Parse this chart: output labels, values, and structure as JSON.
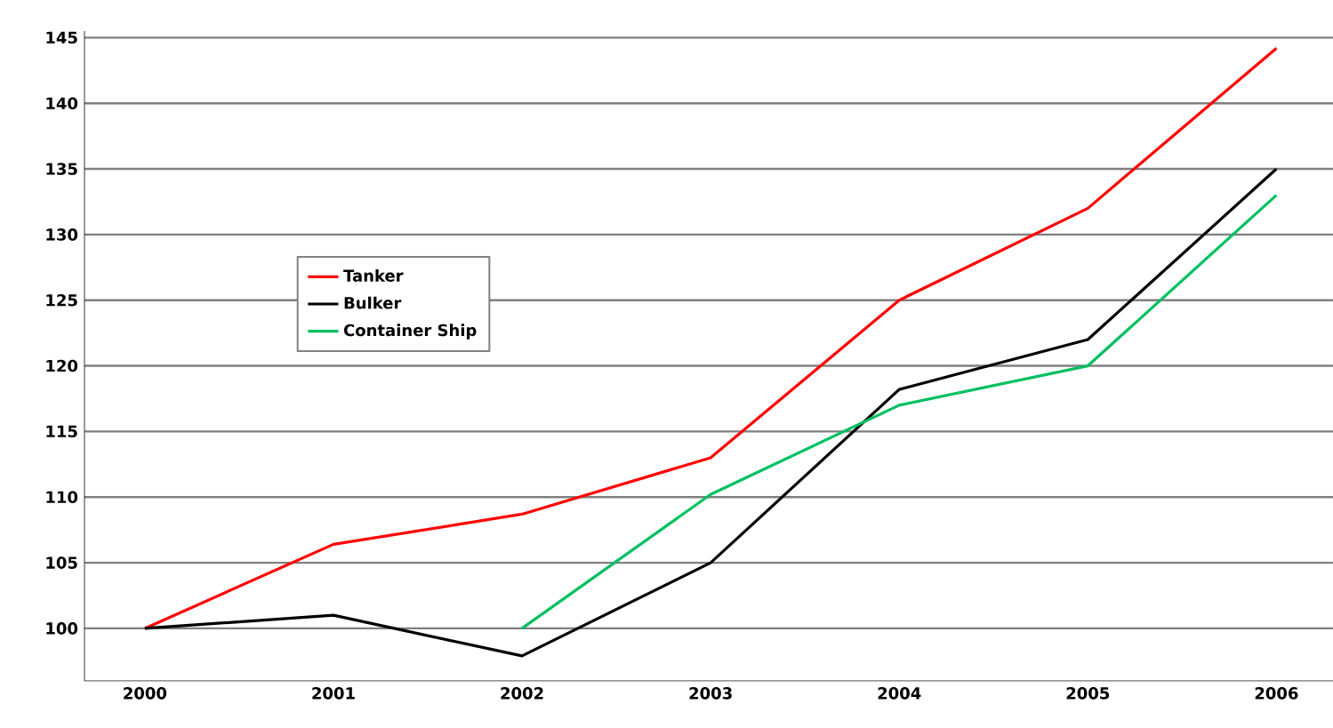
{
  "chart_data": {
    "type": "line",
    "categories": [
      "2000",
      "2001",
      "2002",
      "2003",
      "2004",
      "2005",
      "2006"
    ],
    "series": [
      {
        "name": "Tanker",
        "color": "#ff0000",
        "values": [
          100,
          106.4,
          108.7,
          113,
          125,
          132,
          144.2
        ]
      },
      {
        "name": "Bulker",
        "color": "#000000",
        "values": [
          100,
          101,
          97.9,
          105,
          118.2,
          122,
          135
        ]
      },
      {
        "name": "Container Ship",
        "color": "#00c060",
        "values": [
          null,
          null,
          100,
          110.2,
          117,
          120,
          133
        ]
      }
    ],
    "ylim": [
      96,
      145.5
    ],
    "yticks": [
      100,
      105,
      110,
      115,
      120,
      125,
      130,
      135,
      140,
      145
    ],
    "grid": "y",
    "legend": "left",
    "line_style": "solid",
    "marker": "none"
  }
}
